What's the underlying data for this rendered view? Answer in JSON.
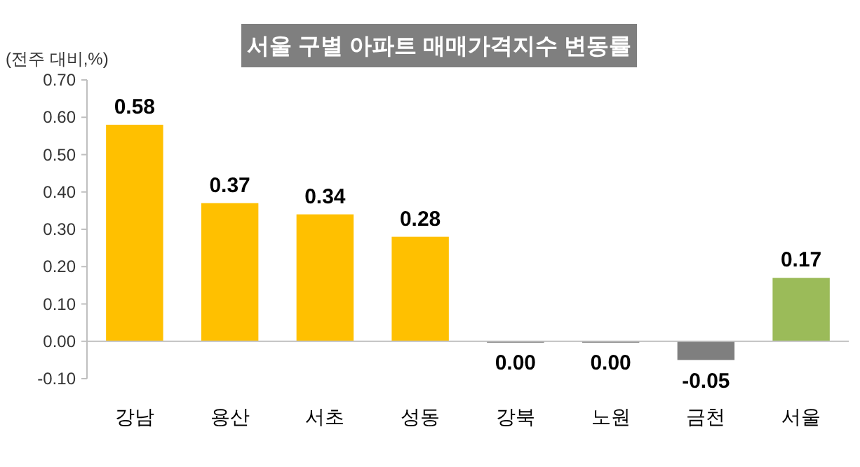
{
  "chart_data": {
    "type": "bar",
    "title": "서울 구별 아파트 매매가격지수 변동률",
    "ylabel": "(전주 대비,%)",
    "categories": [
      "강남",
      "용산",
      "서초",
      "성동",
      "강북",
      "노원",
      "금천",
      "서울"
    ],
    "values": [
      0.58,
      0.37,
      0.34,
      0.28,
      0.0,
      0.0,
      -0.05,
      0.17
    ],
    "colors": [
      "#ffc000",
      "#ffc000",
      "#ffc000",
      "#ffc000",
      "#7f7f7f",
      "#7f7f7f",
      "#7f7f7f",
      "#9bbb59"
    ],
    "value_labels": [
      "0.58",
      "0.37",
      "0.34",
      "0.28",
      "0.00",
      "0.00",
      "-0.05",
      "0.17"
    ],
    "ylim": [
      -0.1,
      0.7
    ],
    "yticks": [
      {
        "value": -0.1,
        "label": "-0.10"
      },
      {
        "value": 0,
        "label": "0.00"
      },
      {
        "value": 0.1,
        "label": "0.10"
      },
      {
        "value": 0.2,
        "label": "0.20"
      },
      {
        "value": 0.3,
        "label": "0.30"
      },
      {
        "value": 0.4,
        "label": "0.40"
      },
      {
        "value": 0.5,
        "label": "0.50"
      },
      {
        "value": 0.6,
        "label": "0.60"
      },
      {
        "value": 0.7,
        "label": "0.70"
      }
    ]
  }
}
